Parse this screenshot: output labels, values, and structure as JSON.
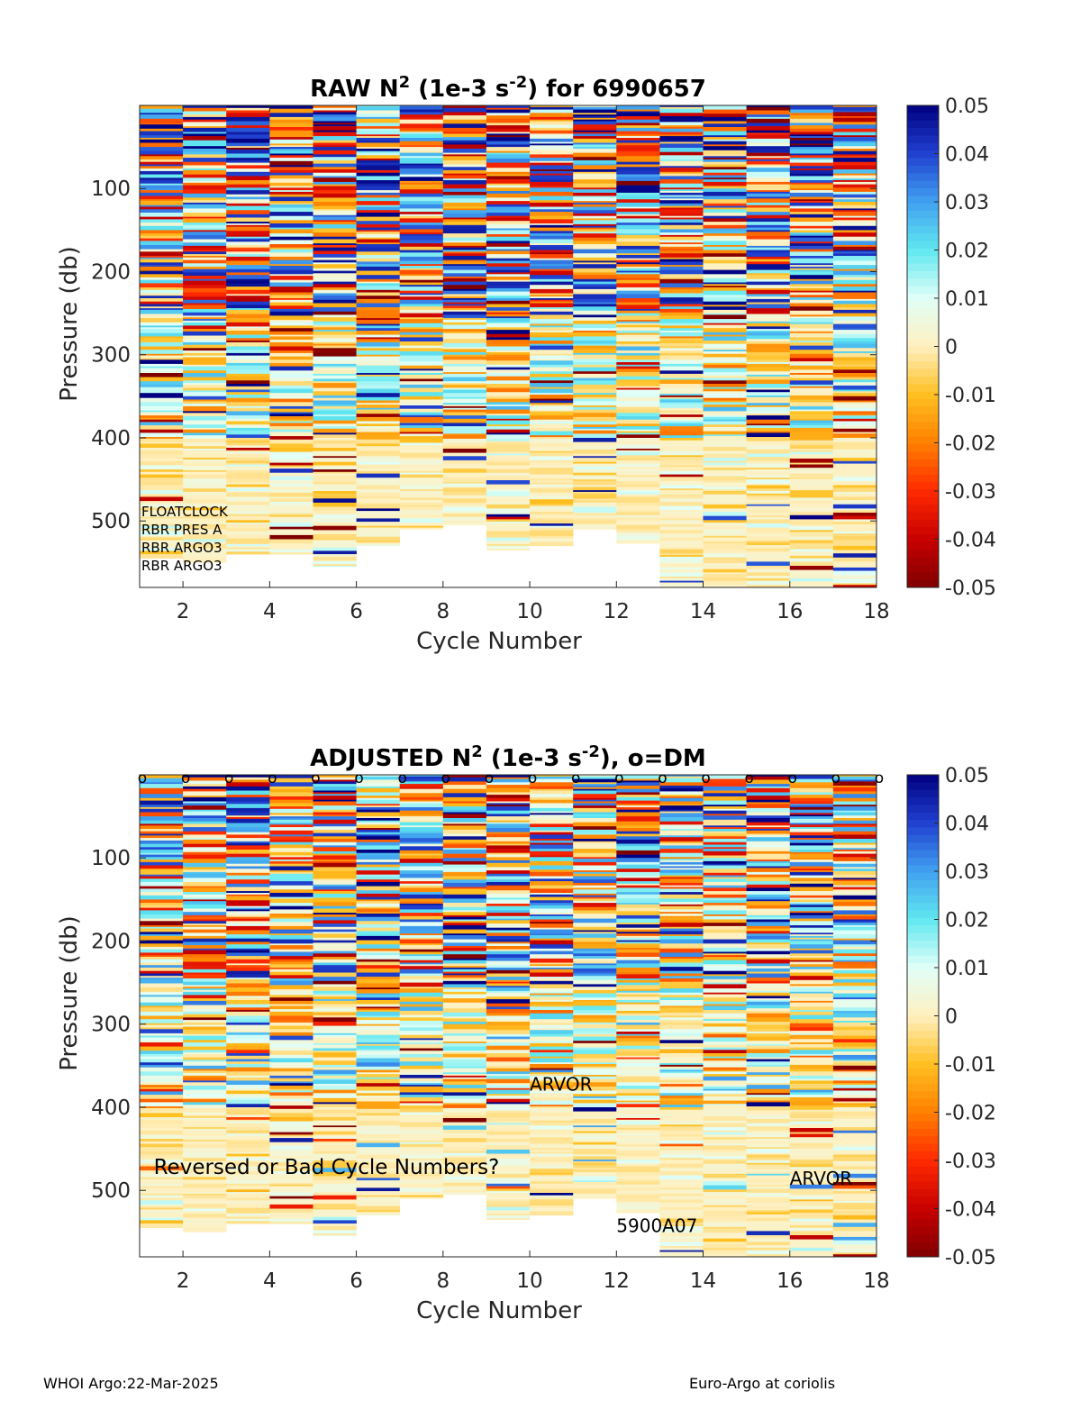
{
  "chart_data": [
    {
      "type": "heatmap",
      "title": {
        "prefix": "RAW N",
        "sup1": "2",
        "mid": " (1e-3 s",
        "sup2": "-2",
        "suffix": ") for 6990657"
      },
      "xlabel": "Cycle Number",
      "ylabel": "Pressure (db)",
      "xlim": [
        1,
        18
      ],
      "ylim": [
        580,
        0
      ],
      "xticks": [
        2,
        4,
        6,
        8,
        10,
        12,
        14,
        16,
        18
      ],
      "yticks": [
        100,
        200,
        300,
        400,
        500
      ],
      "x": [
        1,
        2,
        3,
        4,
        5,
        6,
        7,
        8,
        9,
        10,
        11,
        12,
        13,
        14,
        15,
        16,
        17
      ],
      "max_pressure": [
        545,
        550,
        540,
        540,
        555,
        530,
        510,
        505,
        535,
        530,
        510,
        527,
        580,
        580,
        580,
        580,
        580
      ],
      "colorbar": {
        "min": -0.05,
        "max": 0.05,
        "ticks": [
          "0.05",
          "0.04",
          "0.03",
          "0.02",
          "0.01",
          "0",
          "-0.01",
          "-0.02",
          "-0.03",
          "-0.04",
          "-0.05"
        ]
      },
      "colormap": [
        "#7f0000",
        "#c80000",
        "#ff2a00",
        "#ff8000",
        "#ffc020",
        "#fff0c0",
        "#e0fff8",
        "#60e8f0",
        "#40a0f0",
        "#2040d0",
        "#000080"
      ],
      "annotations": [
        "FLOATCLOCK",
        "RBR PRES A",
        "RBR ARGO3",
        "RBR ARGO3"
      ],
      "grid": false,
      "legend": "colorbar-right"
    },
    {
      "type": "heatmap",
      "title": {
        "prefix": "ADJUSTED N",
        "sup1": "2",
        "mid": " (1e-3 s",
        "sup2": "-2",
        "suffix": "), o=DM"
      },
      "xlabel": "Cycle Number",
      "ylabel": "Pressure (db)",
      "xlim": [
        1,
        18
      ],
      "ylim": [
        580,
        0
      ],
      "xticks": [
        2,
        4,
        6,
        8,
        10,
        12,
        14,
        16,
        18
      ],
      "yticks": [
        100,
        200,
        300,
        400,
        500
      ],
      "x": [
        1,
        2,
        3,
        4,
        5,
        6,
        7,
        8,
        9,
        10,
        11,
        12,
        13,
        14,
        15,
        16,
        17
      ],
      "max_pressure": [
        545,
        550,
        540,
        540,
        555,
        530,
        510,
        505,
        535,
        530,
        510,
        527,
        580,
        580,
        580,
        580,
        580
      ],
      "dm_markers": [
        1,
        2,
        3,
        4,
        5,
        6,
        7,
        8,
        9,
        10,
        11,
        12,
        13,
        14,
        15,
        16,
        17,
        18
      ],
      "dm_marker_label": "o",
      "colorbar": {
        "min": -0.05,
        "max": 0.05,
        "ticks": [
          "0.05",
          "0.04",
          "0.03",
          "0.02",
          "0.01",
          "0",
          "-0.01",
          "-0.02",
          "-0.03",
          "-0.04",
          "-0.05"
        ]
      },
      "colormap": [
        "#7f0000",
        "#c80000",
        "#ff2a00",
        "#ff8000",
        "#ffc020",
        "#fff0c0",
        "#e0fff8",
        "#60e8f0",
        "#40a0f0",
        "#2040d0",
        "#000080"
      ],
      "annotations": [
        {
          "text": "ARVOR",
          "x": 10,
          "y": 380
        },
        {
          "text": "Reversed or Bad Cycle Numbers?",
          "x": 1.2,
          "y": 480
        },
        {
          "text": "ARVOR",
          "x": 16,
          "y": 493
        },
        {
          "text": "5900A07",
          "x": 12,
          "y": 550
        }
      ],
      "grid": false,
      "legend": "colorbar-right"
    }
  ],
  "footer": {
    "left": "WHOI Argo:22-Mar-2025",
    "right": "Euro-Argo at coriolis"
  }
}
